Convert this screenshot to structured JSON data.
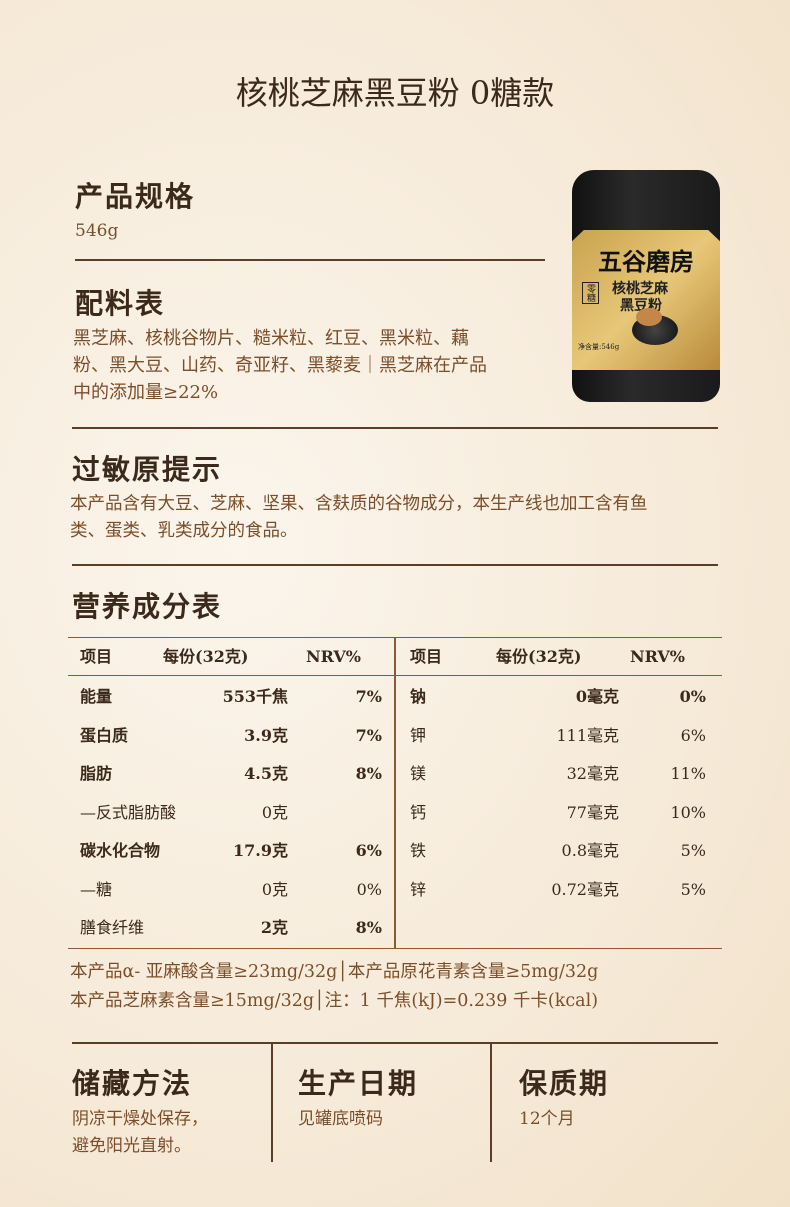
{
  "title": "核桃芝麻黑豆粉 0糖款",
  "spec": {
    "heading": "产品规格",
    "value": "546g"
  },
  "ingredients": {
    "heading": "配料表",
    "lines": [
      "黑芝麻、核桃谷物片、糙米粒、红豆、黑米粒、藕",
      "粉、黑大豆、山药、奇亚籽、黑藜麦｜黑芝麻在产品",
      "中的添加量≥22%"
    ]
  },
  "allergen": {
    "heading": "过敏原提示",
    "lines": [
      "本产品含有大豆、芝麻、坚果、含麸质的谷物成分，本生产线也加工含有鱼",
      "类、蛋类、乳类成分的食品。"
    ]
  },
  "product": {
    "brand": "五谷磨房",
    "name1": "核桃芝麻",
    "name2": "黑豆粉",
    "badge": "零糖",
    "net": "净含量:546g"
  },
  "nutrition": {
    "heading": "营养成分表",
    "headers": [
      "项目",
      "每份(32克)",
      "NRV%"
    ],
    "left": [
      {
        "item": "能量",
        "value": "553千焦",
        "nrv": "7%",
        "bold": true
      },
      {
        "item": "蛋白质",
        "value": "3.9克",
        "nrv": "7%",
        "bold": true
      },
      {
        "item": "脂肪",
        "value": "4.5克",
        "nrv": "8%",
        "bold": true
      },
      {
        "item": "—反式脂肪酸",
        "value": "0克",
        "nrv": "",
        "bold": false
      },
      {
        "item": "碳水化合物",
        "value": "17.9克",
        "nrv": "6%",
        "bold": true
      },
      {
        "item": "—糖",
        "value": "0克",
        "nrv": "0%",
        "bold": false
      },
      {
        "item": "膳食纤维",
        "value": "2克",
        "nrv": "8%",
        "bold": false,
        "valbold": true
      }
    ],
    "right": [
      {
        "item": "钠",
        "value": "0毫克",
        "nrv": "0%",
        "bold": true
      },
      {
        "item": "钾",
        "value": "111毫克",
        "nrv": "6%"
      },
      {
        "item": "镁",
        "value": "32毫克",
        "nrv": "11%"
      },
      {
        "item": "钙",
        "value": "77毫克",
        "nrv": "10%"
      },
      {
        "item": "铁",
        "value": "0.8毫克",
        "nrv": "5%"
      },
      {
        "item": "锌",
        "value": "0.72毫克",
        "nrv": "5%"
      }
    ],
    "notes": [
      "本产品α- 亚麻酸含量≥23mg/32g│本产品原花青素含量≥5mg/32g",
      "本产品芝麻素含量≥15mg/32g│注：1 千焦(kJ)=0.239 千卡(kcal)"
    ]
  },
  "storage": {
    "heading": "储藏方法",
    "lines": [
      "阴凉干燥处保存，",
      "避免阳光直射。"
    ]
  },
  "production": {
    "heading": "生产日期",
    "value": "见罐底喷码"
  },
  "shelf": {
    "heading": "保质期",
    "value": "12个月"
  }
}
